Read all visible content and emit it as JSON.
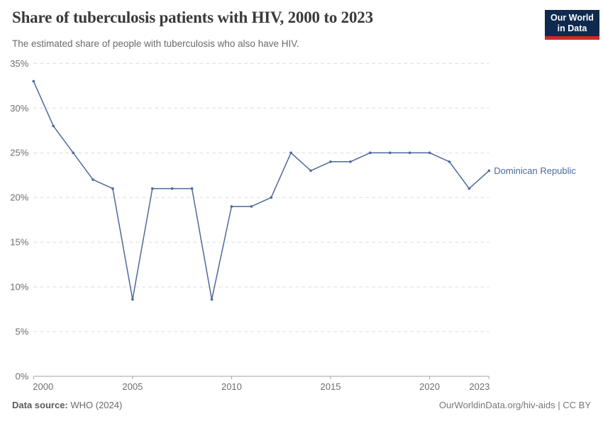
{
  "header": {
    "title": "Share of tuberculosis patients with HIV, 2000 to 2023",
    "subtitle": "The estimated share of people with tuberculosis who also have HIV.",
    "logo": {
      "line1": "Our World",
      "line2": "in Data"
    }
  },
  "colors": {
    "series_blue": "#4c6a9c",
    "logo_navy": "#0f2a4e",
    "logo_red": "#cf2b22",
    "gridline": "#dcdcdc",
    "axis": "#a3a3a3",
    "tick_text": "#6e6e6e"
  },
  "chart_data": {
    "type": "line",
    "title": "Share of tuberculosis patients with HIV, 2000 to 2023",
    "subtitle": "The estimated share of people with tuberculosis who also have HIV.",
    "xlabel": "",
    "ylabel": "",
    "xlim": [
      2000,
      2023
    ],
    "ylim": [
      0,
      35
    ],
    "x_ticks": [
      2000,
      2005,
      2010,
      2015,
      2020,
      2023
    ],
    "y_ticks": [
      0,
      5,
      10,
      15,
      20,
      25,
      30,
      35
    ],
    "y_suffix": "%",
    "grid": "horizontal-dashed",
    "legend_position": "end-of-line-label",
    "series": [
      {
        "name": "Dominican Republic",
        "color": "#4c6a9c",
        "x": [
          2000,
          2001,
          2002,
          2003,
          2004,
          2005,
          2006,
          2007,
          2008,
          2009,
          2010,
          2011,
          2012,
          2013,
          2014,
          2015,
          2016,
          2017,
          2018,
          2019,
          2020,
          2021,
          2022,
          2023
        ],
        "values": [
          33,
          28,
          25,
          22,
          21,
          8.6,
          21,
          21,
          21,
          8.6,
          19,
          19,
          20,
          25,
          23,
          24,
          24,
          25,
          25,
          25,
          25,
          24,
          21,
          23
        ]
      }
    ]
  },
  "footer": {
    "source_label": "Data source:",
    "source_value": " WHO (2024)",
    "credit": "OurWorldinData.org/hiv-aids | CC BY"
  }
}
